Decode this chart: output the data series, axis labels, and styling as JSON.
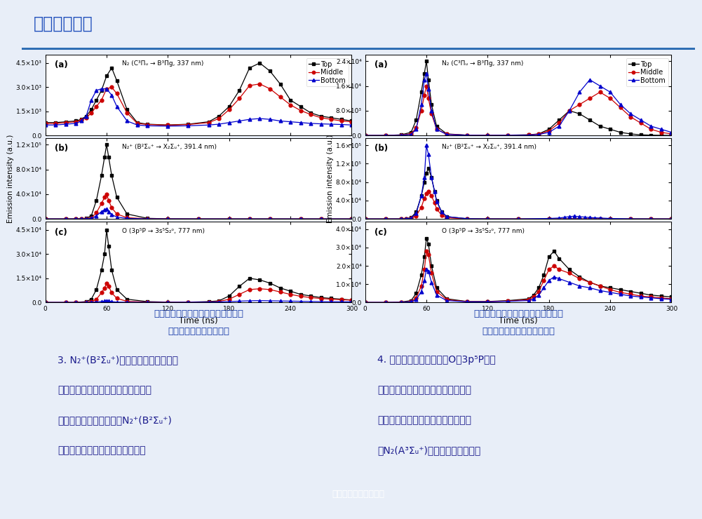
{
  "title": "发射光谱诊断",
  "title_color": "#1E4EBB",
  "bg_color": "#FFFFFF",
  "slide_bg": "#E8EEF8",
  "header_bar_color": "#2E6DB4",
  "footer_text": "《电工技术学报》发布",
  "footer_bg": "#2060A0",
  "left_caption": [
    "填充氧化锆介质棒时活性粒子对应的",
    "发射光谱强度的时空分布"
  ],
  "right_caption": [
    "填充聚四氟乙烯介质棒时活性粒子对",
    "应的发射光谱强度的时空分布"
  ],
  "left_plots": {
    "panel_a": {
      "label": "(a)",
      "annotation": "N₂ (C³Πᵤ → B³Πg, 337 nm)",
      "ylim": [
        0,
        5000
      ],
      "yticks": [
        0,
        1500,
        3000,
        4500
      ],
      "ytick_labels": [
        "0.0",
        "1.5×10³",
        "3.0×10³",
        "4.5×10³"
      ],
      "top_x": [
        0,
        10,
        20,
        30,
        35,
        40,
        45,
        50,
        55,
        60,
        65,
        70,
        80,
        90,
        100,
        120,
        140,
        160,
        170,
        180,
        190,
        200,
        210,
        220,
        230,
        240,
        250,
        260,
        270,
        280,
        290,
        300
      ],
      "top_y": [
        800,
        800,
        850,
        900,
        1000,
        1200,
        1600,
        2200,
        2800,
        3700,
        4200,
        3400,
        1600,
        800,
        700,
        650,
        700,
        850,
        1200,
        1800,
        2800,
        4200,
        4500,
        4000,
        3200,
        2200,
        1800,
        1400,
        1200,
        1100,
        1000,
        900
      ],
      "mid_x": [
        0,
        10,
        20,
        30,
        35,
        40,
        45,
        50,
        55,
        60,
        65,
        70,
        80,
        90,
        100,
        120,
        140,
        160,
        170,
        180,
        190,
        200,
        210,
        220,
        230,
        240,
        250,
        260,
        270,
        280,
        290,
        300
      ],
      "mid_y": [
        750,
        750,
        800,
        850,
        950,
        1100,
        1400,
        1800,
        2200,
        2900,
        3000,
        2600,
        1400,
        750,
        680,
        640,
        680,
        800,
        1050,
        1600,
        2300,
        3100,
        3200,
        2900,
        2400,
        1900,
        1550,
        1300,
        1100,
        1000,
        900,
        850
      ],
      "bot_x": [
        0,
        10,
        20,
        30,
        35,
        40,
        45,
        50,
        55,
        60,
        65,
        70,
        80,
        90,
        100,
        120,
        140,
        160,
        170,
        180,
        190,
        200,
        210,
        220,
        230,
        240,
        250,
        260,
        270,
        280,
        290,
        300
      ],
      "bot_y": [
        650,
        650,
        700,
        750,
        900,
        1200,
        2200,
        2800,
        2900,
        2900,
        2500,
        1800,
        900,
        650,
        600,
        580,
        600,
        650,
        700,
        800,
        900,
        1000,
        1050,
        1000,
        900,
        850,
        800,
        750,
        720,
        700,
        680,
        650
      ]
    },
    "panel_b": {
      "label": "(b)",
      "annotation": "N₂⁺ (B²Σᵤ⁺ → X₂Σᵤ⁺, 391.4 nm)",
      "ylim": [
        0,
        130000
      ],
      "yticks": [
        0,
        40000,
        80000,
        120000
      ],
      "ytick_labels": [
        "0.0",
        "4.0×10⁴",
        "8.0×10⁴",
        "1.2×10⁵"
      ],
      "top_x": [
        0,
        20,
        30,
        35,
        40,
        45,
        50,
        55,
        58,
        60,
        62,
        65,
        70,
        80,
        100,
        120,
        150,
        180,
        200,
        220,
        250,
        270,
        300
      ],
      "top_y": [
        0,
        0,
        100,
        300,
        1000,
        5000,
        30000,
        70000,
        100000,
        120000,
        100000,
        70000,
        35000,
        8000,
        1000,
        200,
        50,
        20,
        10,
        5,
        2,
        1,
        0
      ],
      "mid_x": [
        0,
        20,
        30,
        35,
        40,
        45,
        50,
        55,
        58,
        60,
        62,
        65,
        70,
        80,
        100,
        120,
        150,
        180,
        200,
        220,
        250,
        270,
        300
      ],
      "mid_y": [
        0,
        0,
        50,
        100,
        300,
        1500,
        10000,
        25000,
        35000,
        40000,
        30000,
        18000,
        8000,
        2000,
        300,
        100,
        30,
        10,
        5,
        2,
        1,
        0,
        0
      ],
      "bot_x": [
        0,
        20,
        30,
        35,
        40,
        45,
        50,
        55,
        58,
        60,
        62,
        65,
        70,
        80,
        100,
        120,
        150,
        180,
        200,
        220,
        250,
        270,
        300
      ],
      "bot_y": [
        0,
        0,
        50,
        100,
        200,
        800,
        5000,
        12000,
        15000,
        16000,
        12000,
        7000,
        3000,
        800,
        100,
        50,
        10,
        5,
        2,
        1,
        0,
        0,
        0
      ]
    },
    "panel_c": {
      "label": "(c)",
      "annotation": "O (3p⁵P → 3s⁵S₂ᵒ, 777 nm)",
      "ylim": [
        0,
        50000
      ],
      "yticks": [
        0,
        15000,
        30000,
        45000
      ],
      "ytick_labels": [
        "0.0",
        "1.5×10⁴",
        "3.0×10⁴",
        "4.5×10⁴"
      ],
      "top_x": [
        0,
        20,
        30,
        40,
        45,
        50,
        55,
        58,
        60,
        62,
        65,
        70,
        80,
        100,
        120,
        140,
        160,
        170,
        180,
        190,
        200,
        210,
        220,
        230,
        240,
        250,
        260,
        270,
        280,
        290,
        300
      ],
      "top_y": [
        0,
        0,
        100,
        500,
        2000,
        8000,
        20000,
        30000,
        45000,
        35000,
        20000,
        8000,
        2000,
        500,
        200,
        200,
        500,
        1000,
        4000,
        10000,
        15000,
        14000,
        12000,
        9000,
        7000,
        5000,
        4000,
        3000,
        2500,
        2000,
        1500
      ],
      "mid_x": [
        0,
        20,
        30,
        40,
        45,
        50,
        55,
        58,
        60,
        62,
        65,
        70,
        80,
        100,
        120,
        140,
        160,
        170,
        180,
        190,
        200,
        210,
        220,
        230,
        240,
        250,
        260,
        270,
        280,
        290,
        300
      ],
      "mid_y": [
        0,
        0,
        50,
        200,
        500,
        2000,
        6000,
        9000,
        12000,
        10000,
        6000,
        2500,
        700,
        200,
        100,
        150,
        300,
        600,
        2000,
        5000,
        8000,
        8500,
        8000,
        6500,
        5000,
        3800,
        3000,
        2400,
        2000,
        1700,
        1400
      ],
      "bot_x": [
        0,
        20,
        30,
        40,
        45,
        50,
        55,
        58,
        60,
        62,
        65,
        70,
        80,
        100,
        120,
        140,
        160,
        170,
        180,
        190,
        200,
        210,
        220,
        230,
        240,
        250,
        260,
        270,
        280,
        290,
        300
      ],
      "bot_y": [
        0,
        0,
        0,
        50,
        100,
        300,
        600,
        800,
        1000,
        800,
        500,
        200,
        100,
        50,
        50,
        100,
        200,
        300,
        500,
        800,
        1000,
        1100,
        1000,
        900,
        800,
        700,
        600,
        500,
        450,
        400,
        350
      ]
    }
  },
  "right_plots": {
    "panel_a": {
      "label": "(a)",
      "annotation": "N₂ (C³Πᵤ → B³Πg, 337 nm)",
      "ylim": [
        0,
        26000
      ],
      "yticks": [
        0,
        8000,
        16000,
        24000
      ],
      "ytick_labels": [
        "0.0",
        "8.0×10³",
        "1.6×10⁴",
        "2.4×10⁴"
      ],
      "top_x": [
        0,
        20,
        35,
        45,
        50,
        55,
        58,
        60,
        62,
        65,
        70,
        80,
        100,
        120,
        140,
        160,
        170,
        180,
        190,
        200,
        210,
        220,
        230,
        240,
        250,
        260,
        270,
        280,
        290,
        300
      ],
      "top_y": [
        0,
        0,
        200,
        1000,
        5000,
        14000,
        20000,
        24000,
        18000,
        10000,
        3000,
        500,
        100,
        50,
        100,
        200,
        500,
        2000,
        5000,
        8000,
        7000,
        5000,
        3000,
        2000,
        1000,
        500,
        200,
        100,
        50,
        0
      ],
      "mid_x": [
        0,
        20,
        35,
        45,
        50,
        55,
        58,
        60,
        62,
        65,
        70,
        80,
        100,
        120,
        140,
        160,
        170,
        180,
        190,
        200,
        210,
        220,
        230,
        240,
        250,
        260,
        270,
        280,
        290,
        300
      ],
      "mid_y": [
        0,
        0,
        100,
        500,
        2500,
        8000,
        13000,
        16000,
        12000,
        7000,
        2000,
        400,
        80,
        40,
        80,
        150,
        400,
        1500,
        4000,
        8000,
        10000,
        12000,
        14000,
        12000,
        9000,
        6000,
        4000,
        2000,
        1000,
        500
      ],
      "bot_x": [
        0,
        20,
        35,
        45,
        50,
        55,
        58,
        60,
        62,
        65,
        70,
        80,
        100,
        120,
        140,
        160,
        170,
        180,
        190,
        200,
        210,
        220,
        230,
        240,
        250,
        260,
        270,
        280,
        290,
        300
      ],
      "bot_y": [
        0,
        0,
        50,
        300,
        2000,
        10000,
        18000,
        20000,
        15000,
        8000,
        2000,
        300,
        50,
        20,
        50,
        100,
        300,
        1000,
        3000,
        8000,
        14000,
        18000,
        16000,
        14000,
        10000,
        7000,
        5000,
        3000,
        2000,
        1000
      ]
    },
    "panel_b": {
      "label": "(b)",
      "annotation": "N₂⁺ (B²Σᵤ⁺ → X₂Σᵤ⁺, 391.4 nm)",
      "ylim": [
        0,
        175000
      ],
      "yticks": [
        0,
        40000,
        80000,
        120000,
        160000
      ],
      "ytick_labels": [
        "0.0",
        "4.0×10⁴",
        "8.0×10⁴",
        "1.2×10⁵",
        "1.6×10⁵"
      ],
      "top_x": [
        0,
        20,
        35,
        40,
        45,
        50,
        55,
        58,
        60,
        62,
        65,
        68,
        70,
        75,
        80,
        100,
        120,
        150,
        180,
        200,
        210,
        220,
        230,
        240,
        260,
        280,
        300
      ],
      "top_y": [
        0,
        0,
        100,
        500,
        3000,
        15000,
        50000,
        80000,
        100000,
        110000,
        90000,
        60000,
        40000,
        15000,
        5000,
        500,
        100,
        20,
        10,
        5,
        2,
        2,
        1,
        1,
        0,
        0,
        0
      ],
      "mid_x": [
        0,
        20,
        35,
        40,
        45,
        50,
        55,
        58,
        60,
        62,
        65,
        68,
        70,
        75,
        80,
        100,
        120,
        150,
        180,
        200,
        210,
        220,
        230,
        240,
        260,
        280,
        300
      ],
      "mid_y": [
        0,
        0,
        50,
        200,
        1200,
        7000,
        25000,
        45000,
        55000,
        60000,
        50000,
        35000,
        22000,
        8000,
        2500,
        200,
        50,
        10,
        5,
        2,
        1,
        1,
        0,
        0,
        0,
        0,
        0
      ],
      "bot_x": [
        0,
        20,
        35,
        40,
        45,
        50,
        55,
        58,
        60,
        62,
        65,
        68,
        70,
        75,
        80,
        100,
        120,
        150,
        180,
        190,
        195,
        200,
        205,
        210,
        215,
        220,
        225,
        230,
        240,
        260,
        280,
        300
      ],
      "bot_y": [
        0,
        0,
        50,
        200,
        2000,
        12000,
        50000,
        90000,
        160000,
        140000,
        90000,
        60000,
        38000,
        15000,
        5000,
        500,
        100,
        20,
        1000,
        2000,
        3500,
        5000,
        6000,
        5000,
        4000,
        3000,
        2500,
        2000,
        1000,
        200,
        50,
        0
      ]
    },
    "panel_c": {
      "label": "(c)",
      "annotation": "O (3p⁵P → 3s⁵S₂ᵒ, 777 nm)",
      "ylim": [
        0,
        44000
      ],
      "yticks": [
        0,
        10000,
        20000,
        30000,
        40000
      ],
      "ytick_labels": [
        "0.0",
        "1.0×10⁴",
        "2.0×10⁴",
        "3.0×10⁴",
        "4.0×10⁴"
      ],
      "top_x": [
        0,
        20,
        35,
        45,
        50,
        55,
        58,
        60,
        62,
        65,
        70,
        80,
        100,
        120,
        140,
        160,
        165,
        170,
        175,
        180,
        185,
        190,
        200,
        210,
        220,
        230,
        240,
        250,
        260,
        270,
        280,
        290,
        300
      ],
      "top_y": [
        0,
        0,
        200,
        1000,
        5000,
        15000,
        25000,
        35000,
        32000,
        20000,
        8000,
        2000,
        500,
        500,
        1000,
        2000,
        4000,
        8000,
        15000,
        25000,
        28000,
        24000,
        18000,
        14000,
        11000,
        9000,
        8000,
        7000,
        6000,
        5000,
        4000,
        3500,
        3000
      ],
      "mid_x": [
        0,
        20,
        35,
        45,
        50,
        55,
        58,
        60,
        62,
        65,
        70,
        80,
        100,
        120,
        140,
        160,
        165,
        170,
        175,
        180,
        185,
        190,
        200,
        210,
        220,
        230,
        240,
        250,
        260,
        270,
        280,
        290,
        300
      ],
      "mid_y": [
        0,
        0,
        100,
        500,
        2500,
        9000,
        18000,
        28000,
        26000,
        16000,
        6000,
        1500,
        400,
        400,
        800,
        1500,
        3000,
        6000,
        12000,
        18000,
        20000,
        18000,
        16000,
        13000,
        11000,
        9000,
        7000,
        5500,
        4500,
        3500,
        3000,
        2500,
        2000
      ],
      "bot_x": [
        0,
        20,
        35,
        45,
        50,
        55,
        58,
        60,
        62,
        65,
        70,
        80,
        100,
        120,
        140,
        160,
        165,
        170,
        175,
        180,
        185,
        190,
        200,
        210,
        220,
        230,
        240,
        250,
        260,
        270,
        280,
        290,
        300
      ],
      "bot_y": [
        0,
        0,
        50,
        300,
        1500,
        6000,
        12000,
        18000,
        17000,
        11000,
        4000,
        1000,
        300,
        300,
        600,
        1000,
        2000,
        4000,
        8000,
        12000,
        14000,
        13000,
        11000,
        9000,
        8000,
        6500,
        5500,
        4500,
        3500,
        3000,
        2500,
        2000,
        1700
      ]
    }
  },
  "colors": {
    "top": "#000000",
    "middle": "#CC0000",
    "bottom": "#0000CC"
  }
}
